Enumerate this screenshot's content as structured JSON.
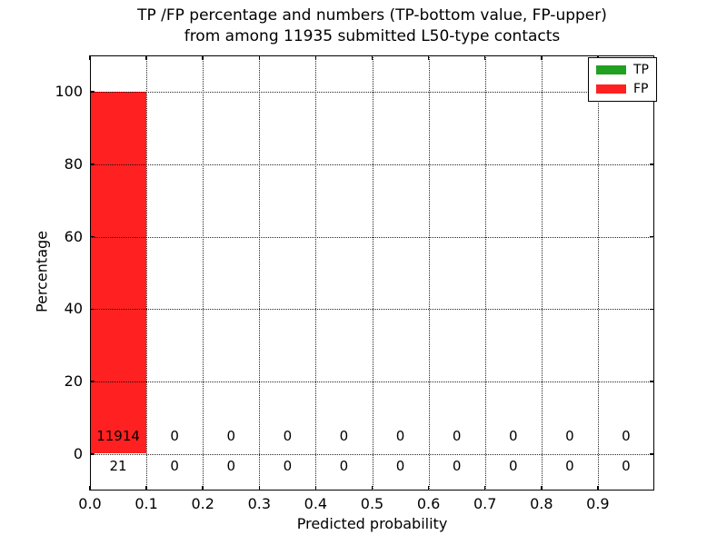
{
  "title": {
    "line1": "TP /FP percentage and numbers (TP-bottom value, FP-upper)",
    "line2": "from among 11935 submitted L50-type contacts"
  },
  "axes": {
    "xlabel": "Predicted probability",
    "ylabel": "Percentage",
    "x_ticks": [
      "0.0",
      "0.1",
      "0.2",
      "0.3",
      "0.4",
      "0.5",
      "0.6",
      "0.7",
      "0.8",
      "0.9"
    ],
    "x_tick_values": [
      0.0,
      0.1,
      0.2,
      0.3,
      0.4,
      0.5,
      0.6,
      0.7,
      0.8,
      0.9
    ],
    "y_ticks": [
      "0",
      "20",
      "40",
      "60",
      "80",
      "100"
    ],
    "y_tick_values": [
      0,
      20,
      40,
      60,
      80,
      100
    ],
    "xlim": [
      0.0,
      1.0
    ],
    "ylim": [
      -10,
      110
    ],
    "grid": true,
    "grid_style": "dotted"
  },
  "legend": [
    {
      "label": "TP",
      "color": "#22a022"
    },
    {
      "label": "FP",
      "color": "#ff2121"
    }
  ],
  "annotations": {
    "fp_row": [
      "11914",
      "0",
      "0",
      "0",
      "0",
      "0",
      "0",
      "0",
      "0",
      "0"
    ],
    "tp_row": [
      "21",
      "0",
      "0",
      "0",
      "0",
      "0",
      "0",
      "0",
      "0",
      "0"
    ],
    "fp_row_y_value": 5,
    "tp_row_y_value": -3.4
  },
  "chart_data": {
    "type": "bar",
    "stacked": true,
    "title": "TP /FP percentage and numbers (TP-bottom value, FP-upper) from among 11935 submitted L50-type contacts",
    "xlabel": "Predicted probability",
    "ylabel": "Percentage",
    "xlim": [
      0.0,
      1.0
    ],
    "ylim": [
      -10,
      110
    ],
    "total_submitted": 11935,
    "contact_type": "L50",
    "bin_width": 0.1,
    "bin_starts": [
      0.0,
      0.1,
      0.2,
      0.3,
      0.4,
      0.5,
      0.6,
      0.7,
      0.8,
      0.9
    ],
    "series": [
      {
        "name": "TP",
        "color": "#22a022",
        "counts": [
          21,
          0,
          0,
          0,
          0,
          0,
          0,
          0,
          0,
          0
        ],
        "percent": [
          0.176,
          0,
          0,
          0,
          0,
          0,
          0,
          0,
          0,
          0
        ]
      },
      {
        "name": "FP",
        "color": "#ff2121",
        "counts": [
          11914,
          0,
          0,
          0,
          0,
          0,
          0,
          0,
          0,
          0
        ],
        "percent": [
          99.824,
          0,
          0,
          0,
          0,
          0,
          0,
          0,
          0,
          0
        ]
      }
    ],
    "grid": true,
    "legend_position": "upper right"
  }
}
